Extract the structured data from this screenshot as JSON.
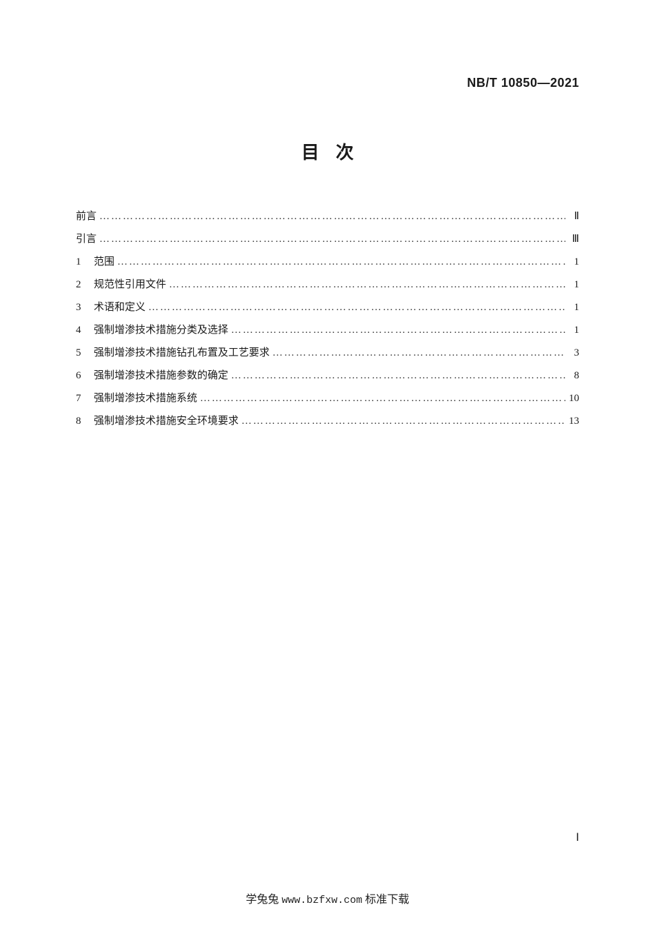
{
  "header": {
    "standard_code": "NB/T 10850—2021"
  },
  "title": "目次",
  "toc": [
    {
      "num": "",
      "label": "前言",
      "page": "Ⅱ"
    },
    {
      "num": "",
      "label": "引言",
      "page": "Ⅲ"
    },
    {
      "num": "1",
      "label": "范围",
      "page": "1"
    },
    {
      "num": "2",
      "label": "规范性引用文件",
      "page": "1"
    },
    {
      "num": "3",
      "label": "术语和定义",
      "page": "1"
    },
    {
      "num": "4",
      "label": "强制增渗技术措施分类及选择",
      "page": "1"
    },
    {
      "num": "5",
      "label": "强制增渗技术措施钻孔布置及工艺要求",
      "page": "3"
    },
    {
      "num": "6",
      "label": "强制增渗技术措施参数的确定",
      "page": "8"
    },
    {
      "num": "7",
      "label": "强制增渗技术措施系统",
      "page": "10"
    },
    {
      "num": "8",
      "label": "强制增渗技术措施安全环境要求",
      "page": "13"
    }
  ],
  "page_number": "Ⅰ",
  "footer": {
    "prefix": "学兔兔",
    "url": "www.bzfxw.com",
    "suffix": "标准下载"
  }
}
